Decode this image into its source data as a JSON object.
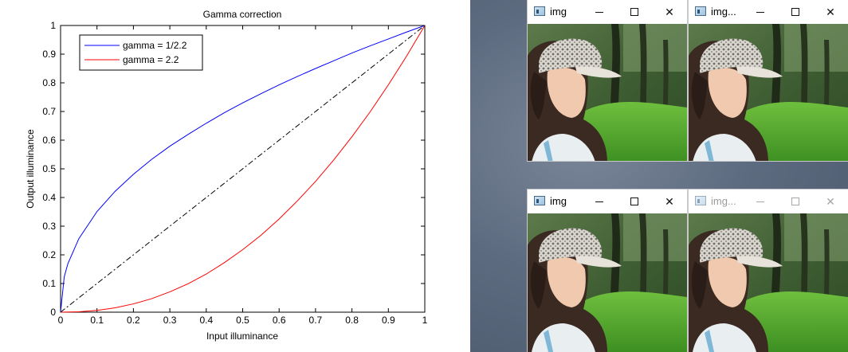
{
  "chart_data": {
    "type": "line",
    "title": "Gamma correction",
    "xlabel": "Input illuminance",
    "ylabel": "Output illuminance",
    "xlim": [
      0,
      1
    ],
    "ylim": [
      0,
      1
    ],
    "grid": false,
    "legend_position": "top-left",
    "xticks": [
      "0",
      "0.1",
      "0.2",
      "0.3",
      "0.4",
      "0.5",
      "0.6",
      "0.7",
      "0.8",
      "0.9",
      "1"
    ],
    "yticks": [
      "0",
      "0.1",
      "0.2",
      "0.3",
      "0.4",
      "0.5",
      "0.6",
      "0.7",
      "0.8",
      "0.9",
      "1"
    ],
    "series": [
      {
        "name": "gamma = 1/2.2",
        "color": "#0000ff",
        "style": "solid",
        "x": [
          0,
          0.01,
          0.02,
          0.05,
          0.1,
          0.15,
          0.2,
          0.25,
          0.3,
          0.35,
          0.4,
          0.45,
          0.5,
          0.55,
          0.6,
          0.65,
          0.7,
          0.75,
          0.8,
          0.85,
          0.9,
          0.95,
          1
        ],
        "y": [
          0,
          0.123,
          0.169,
          0.256,
          0.351,
          0.422,
          0.481,
          0.533,
          0.579,
          0.62,
          0.659,
          0.696,
          0.73,
          0.762,
          0.793,
          0.822,
          0.85,
          0.877,
          0.904,
          0.929,
          0.953,
          0.977,
          1
        ]
      },
      {
        "name": "gamma = 2.2",
        "color": "#ff0000",
        "style": "solid",
        "x": [
          0,
          0.05,
          0.1,
          0.15,
          0.2,
          0.25,
          0.3,
          0.35,
          0.4,
          0.45,
          0.5,
          0.55,
          0.6,
          0.65,
          0.7,
          0.75,
          0.8,
          0.85,
          0.9,
          0.95,
          1
        ],
        "y": [
          0,
          0.0014,
          0.0063,
          0.0154,
          0.029,
          0.047,
          0.071,
          0.099,
          0.133,
          0.173,
          0.218,
          0.268,
          0.325,
          0.388,
          0.456,
          0.531,
          0.612,
          0.699,
          0.793,
          0.893,
          1
        ]
      },
      {
        "color": "#000000",
        "style": "dashdot",
        "x": [
          0,
          1
        ],
        "y": [
          0,
          1
        ]
      }
    ]
  },
  "windows": [
    {
      "title": "img",
      "active": true
    },
    {
      "title": "img...",
      "active": true
    },
    {
      "title": "img",
      "active": true
    },
    {
      "title": "img...",
      "active": false
    }
  ],
  "icons": {
    "window": "window-app-icon",
    "minimize": "minimize-icon",
    "maximize": "maximize-icon",
    "close": "close-icon"
  },
  "glyphs": {
    "close": "✕"
  }
}
